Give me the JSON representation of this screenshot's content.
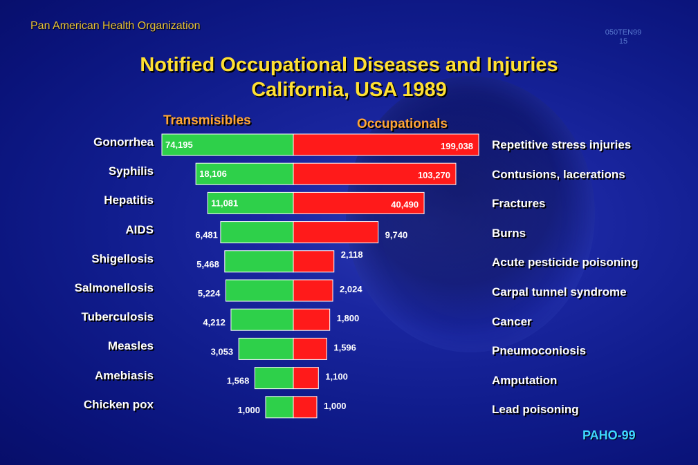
{
  "header": {
    "org": "Pan American Health Organization",
    "code_line1": "050TEN99",
    "code_line2": "15",
    "title_line1": "Notified Occupational Diseases and Injuries",
    "title_line2": "California, USA 1989"
  },
  "footer": {
    "label": "PAHO-99"
  },
  "colors": {
    "transmissible": "#2ed04a",
    "occupational": "#ff1a1a",
    "background": "#0f1a8a"
  },
  "chart_data": {
    "type": "bar",
    "layout": "diverging-horizontal",
    "note_scale": "non-linear",
    "series": [
      {
        "name": "Transmisibles",
        "categories": [
          "Gonorrhea",
          "Syphilis",
          "Hepatitis",
          "AIDS",
          "Shigellosis",
          "Salmonellosis",
          "Tuberculosis",
          "Measles",
          "Amebiasis",
          "Chicken pox"
        ],
        "values": [
          74195,
          18106,
          11081,
          6481,
          5468,
          5224,
          4212,
          3053,
          1568,
          1000
        ],
        "labels": [
          "74,195",
          "18,106",
          "11,081",
          "6,481",
          "5,468",
          "5,224",
          "4,212",
          "3,053",
          "1,568",
          "1,000"
        ]
      },
      {
        "name": "Occupationals",
        "categories": [
          "Repetitive stress injuries",
          "Contusions, lacerations",
          "Fractures",
          "Burns",
          "Acute pesticide poisoning",
          "Carpal tunnel syndrome",
          "Cancer",
          "Pneumoconiosis",
          "Amputation",
          "Lead poisoning"
        ],
        "values": [
          199038,
          103270,
          40490,
          9740,
          2118,
          2024,
          1800,
          1596,
          1100,
          1000
        ],
        "labels": [
          "199,038",
          "103,270",
          "40,490",
          "9,740",
          "2,118",
          "2,024",
          "1,800",
          "1,596",
          "1,100",
          "1,000"
        ]
      }
    ]
  }
}
